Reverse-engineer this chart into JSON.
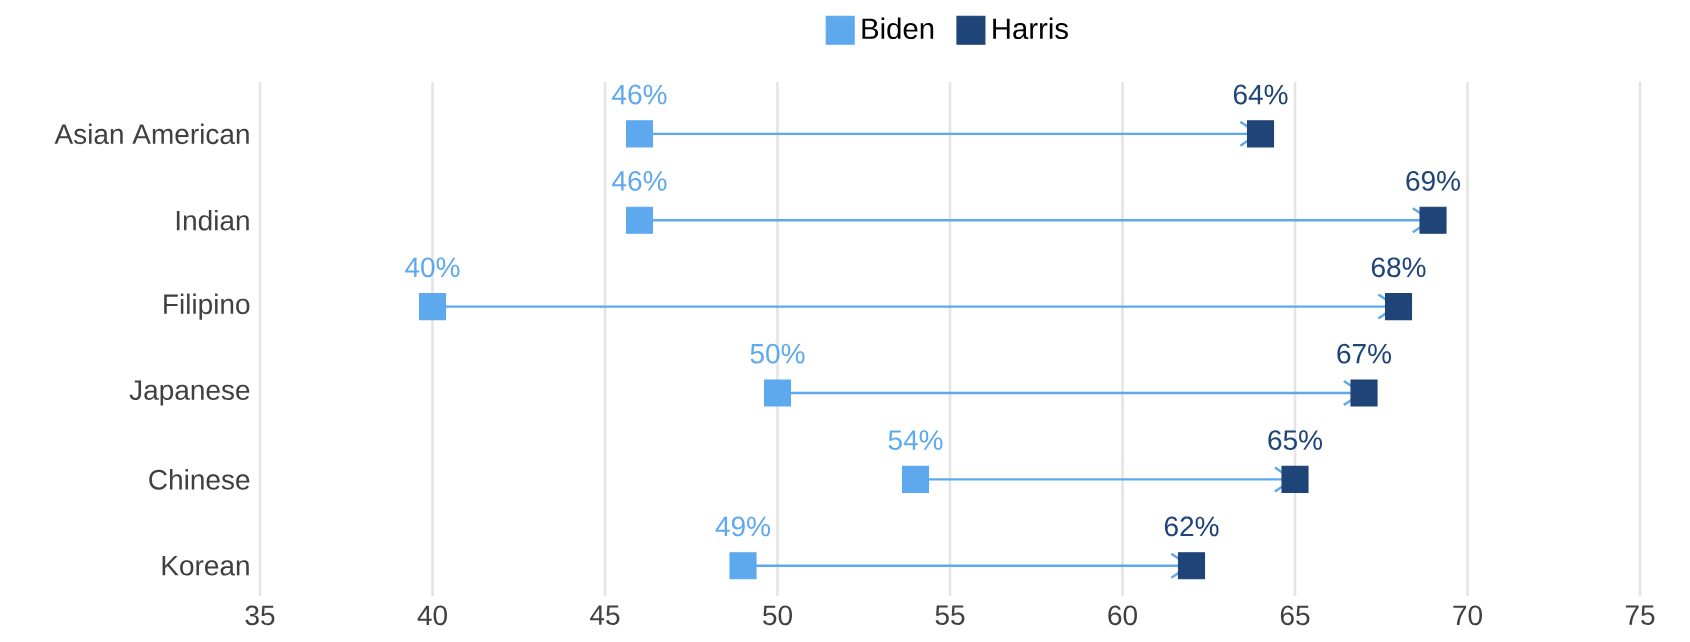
{
  "chart_data": {
    "type": "scatter",
    "orientation": "horizontal",
    "categories": [
      "Asian American",
      "Indian",
      "Filipino",
      "Japanese",
      "Chinese",
      "Korean"
    ],
    "series": [
      {
        "name": "Biden",
        "color": "#5ea9ee",
        "values": [
          46,
          46,
          40,
          50,
          54,
          49
        ],
        "value_labels": [
          "46%",
          "46%",
          "40%",
          "50%",
          "54%",
          "49%"
        ]
      },
      {
        "name": "Harris",
        "color": "#1f4477",
        "values": [
          64,
          69,
          68,
          67,
          65,
          62
        ],
        "value_labels": [
          "64%",
          "69%",
          "68%",
          "67%",
          "65%",
          "62%"
        ]
      }
    ],
    "xlim": [
      35,
      75
    ],
    "xticks": [
      35,
      40,
      45,
      50,
      55,
      60,
      65,
      70,
      75
    ],
    "grid": "x",
    "legend": "top",
    "marker": "square"
  }
}
